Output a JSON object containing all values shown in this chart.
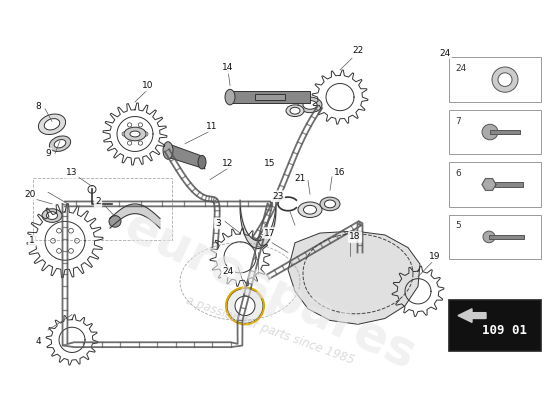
{
  "bg_color": "#ffffff",
  "parts_color": "#333333",
  "watermark_text": "a passion for parts since 1985",
  "watermark_brand": "eurospares",
  "part_number_box": "109 01",
  "legend_items": [
    {
      "id": "24",
      "type": "nut"
    },
    {
      "id": "7",
      "type": "bolt_short"
    },
    {
      "id": "6",
      "type": "bolt_hex"
    },
    {
      "id": "5",
      "type": "bolt_long"
    }
  ]
}
